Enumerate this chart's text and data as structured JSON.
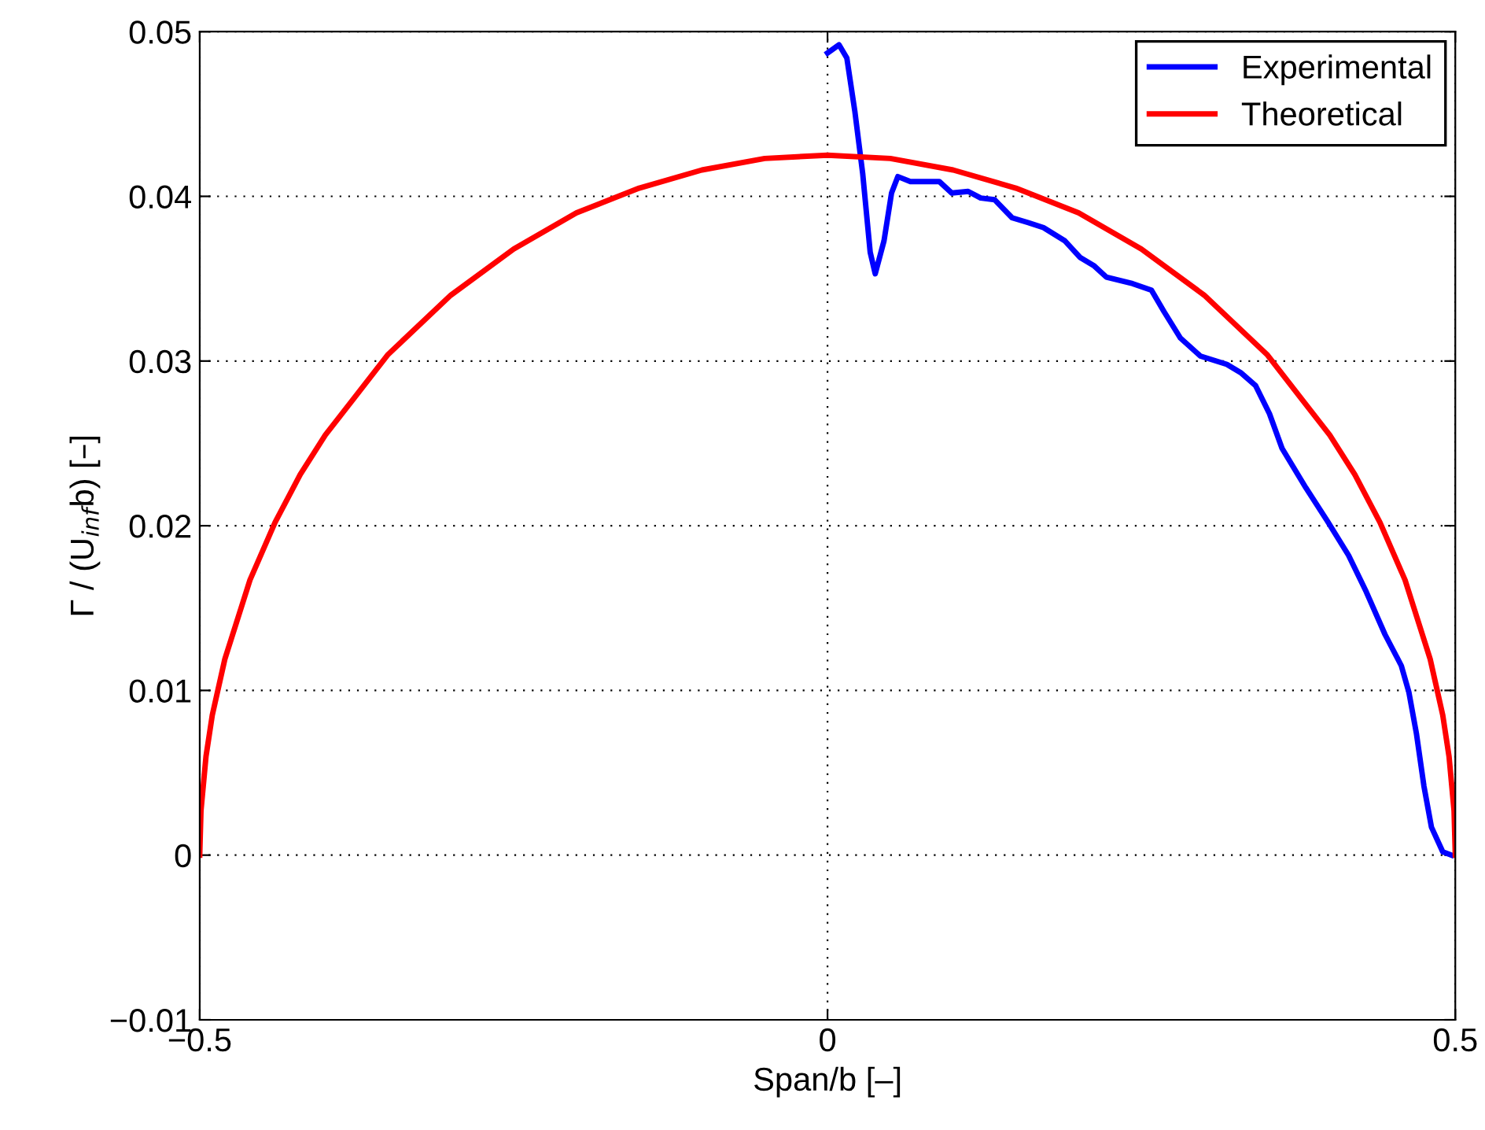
{
  "chart_data": {
    "type": "line",
    "xlabel": "Span/b [–]",
    "ylabel": "Γ / (U$_{inf}$b) [–]",
    "xlim": [
      -0.5,
      0.5
    ],
    "xticks": [
      {
        "value": -0.5,
        "label": "−0.5"
      },
      0,
      0.5
    ],
    "ylim": [
      -0.01,
      0.05
    ],
    "yticks": [
      {
        "value": -0.01,
        "label": "−0.01"
      },
      0,
      0.01,
      0.02,
      0.03,
      0.04,
      0.05
    ],
    "grid": true,
    "legend": "top right",
    "line_style": "solid",
    "marker": "none",
    "series": [
      {
        "name": "Experimental",
        "color": "#0000ff",
        "x": [
          0.0,
          0.0092,
          0.0154,
          0.0217,
          0.028,
          0.034,
          0.038,
          0.045,
          0.051,
          0.056,
          0.066,
          0.089,
          0.099,
          0.112,
          0.122,
          0.133,
          0.147,
          0.16,
          0.172,
          0.189,
          0.201,
          0.212,
          0.222,
          0.243,
          0.258,
          0.268,
          0.281,
          0.297,
          0.318,
          0.329,
          0.341,
          0.352,
          0.362,
          0.381,
          0.398,
          0.415,
          0.429,
          0.444,
          0.457,
          0.463,
          0.469,
          0.475,
          0.481,
          0.49,
          0.497
        ],
        "values": [
          0.0487,
          0.0492,
          0.0484,
          0.0452,
          0.0414,
          0.0366,
          0.0353,
          0.0373,
          0.0402,
          0.0412,
          0.0409,
          0.0409,
          0.0402,
          0.0403,
          0.0399,
          0.0398,
          0.0387,
          0.0384,
          0.0381,
          0.0373,
          0.0363,
          0.0358,
          0.0351,
          0.0347,
          0.0343,
          0.033,
          0.0314,
          0.0303,
          0.0298,
          0.0293,
          0.0285,
          0.0268,
          0.0247,
          0.0223,
          0.0203,
          0.0182,
          0.016,
          0.0134,
          0.0115,
          0.0099,
          0.0074,
          0.0042,
          0.0017,
          0.0002,
          0.0
        ]
      },
      {
        "name": "Theoretical",
        "color": "#ff0000",
        "x": [
          -0.5,
          -0.499,
          -0.495,
          -0.49,
          -0.48,
          -0.46,
          -0.44,
          -0.42,
          -0.4,
          -0.35,
          -0.3,
          -0.25,
          -0.2,
          -0.15,
          -0.1,
          -0.05,
          0.0,
          0.05,
          0.1,
          0.15,
          0.2,
          0.25,
          0.3,
          0.35,
          0.4,
          0.42,
          0.44,
          0.46,
          0.48,
          0.49,
          0.495,
          0.499,
          0.5
        ],
        "values": [
          0.0,
          0.0027,
          0.006,
          0.0085,
          0.0119,
          0.0167,
          0.0202,
          0.0231,
          0.0255,
          0.0304,
          0.034,
          0.0368,
          0.039,
          0.0405,
          0.0416,
          0.0423,
          0.0425,
          0.0423,
          0.0416,
          0.0405,
          0.039,
          0.0368,
          0.034,
          0.0304,
          0.0255,
          0.0231,
          0.0202,
          0.0167,
          0.0119,
          0.0085,
          0.006,
          0.0027,
          0.0
        ]
      }
    ]
  }
}
